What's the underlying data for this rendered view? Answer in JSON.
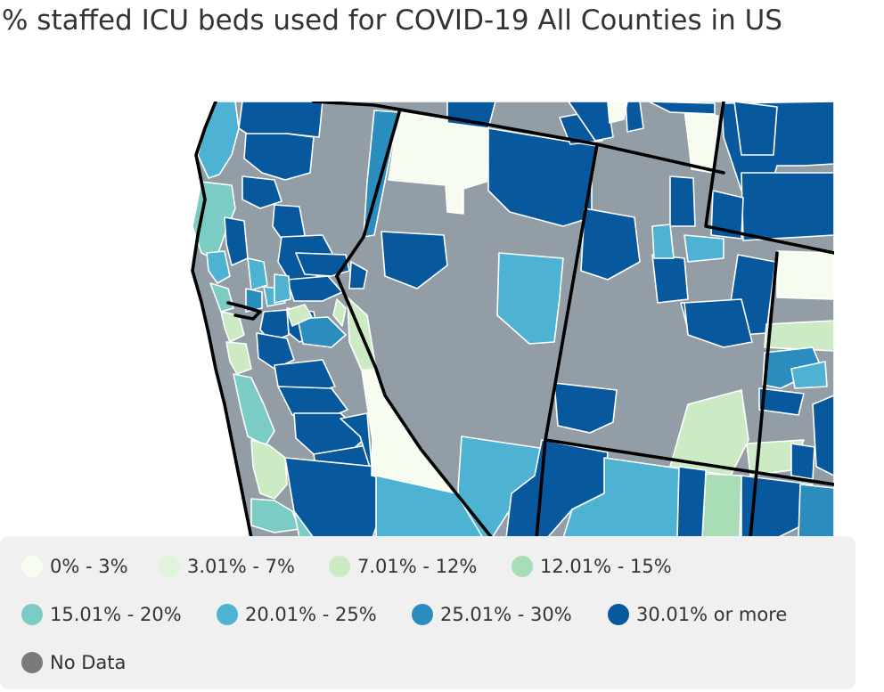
{
  "title": "% staffed ICU beds used for COVID-19 All Counties in US",
  "legend": {
    "items": [
      {
        "label": "0% - 3%",
        "color": "#f7fcf0"
      },
      {
        "label": "3.01% - 7%",
        "color": "#e0f3db"
      },
      {
        "label": "7.01% - 12%",
        "color": "#ccebc5"
      },
      {
        "label": "12.01% - 15%",
        "color": "#a8ddb5"
      },
      {
        "label": "15.01% - 20%",
        "color": "#7bccc4"
      },
      {
        "label": "20.01% - 25%",
        "color": "#4eb3d3"
      },
      {
        "label": "25.01% - 30%",
        "color": "#2b8cbe"
      },
      {
        "label": "30.01% or more",
        "color": "#08589e"
      },
      {
        "label": "No Data",
        "color": "#7a7a7a"
      }
    ]
  },
  "colors": {
    "no_data_fill": "#929da5",
    "border": "#ffffff",
    "state_border": "#000000"
  }
}
